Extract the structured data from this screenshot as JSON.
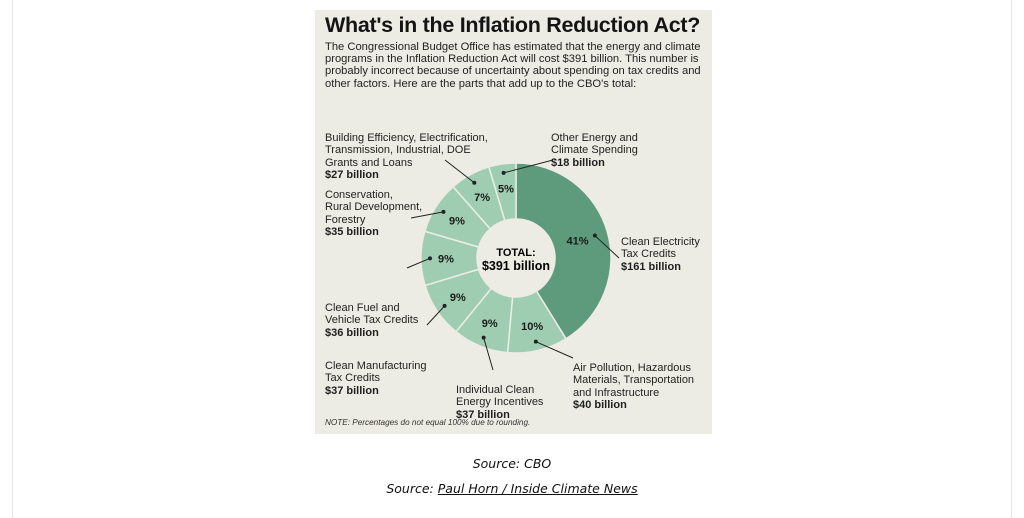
{
  "chart_data": {
    "type": "pie",
    "title": "What's in the Inflation Reduction Act?",
    "subtitle": "The Congressional Budget Office has estimated that the energy and climate programs in the Inflation Reduction Act will cost $391 billion. This number is probably incorrect because of uncertainty about spending on tax credits and other factors. Here are the parts that add up to the CBO's total:",
    "center_label": {
      "line1": "TOTAL:",
      "line2": "$391 billion"
    },
    "note": "NOTE: Percentages do not equal 100% due to rounding.",
    "slices": [
      {
        "name": "Clean Electricity\nTax Credits",
        "amount": "$161 billion",
        "value": 161,
        "percent": "41%",
        "color": "#5e9a7c"
      },
      {
        "name": "Air Pollution, Hazardous\nMaterials, Transportation\nand Infrastructure",
        "amount": "$40 billion",
        "value": 40,
        "percent": "10%",
        "color": "#9fcdb2"
      },
      {
        "name": "Individual Clean\nEnergy Incentives",
        "amount": "$37 billion",
        "value": 37,
        "percent": "9%",
        "color": "#9fcdb2"
      },
      {
        "name": "Clean Manufacturing\nTax Credits",
        "amount": "$37 billion",
        "value": 37,
        "percent": "9%",
        "color": "#9fcdb2"
      },
      {
        "name": "Clean Fuel and\nVehicle Tax Credits",
        "amount": "$36 billion",
        "value": 36,
        "percent": "9%",
        "color": "#9fcdb2"
      },
      {
        "name": "Conservation,\nRural Development,\nForestry",
        "amount": "$35 billion",
        "value": 35,
        "percent": "9%",
        "color": "#9fcdb2"
      },
      {
        "name": "Building Efficiency, Electrification,\nTransmission, Industrial, DOE\nGrants and Loans",
        "amount": "$27 billion",
        "value": 27,
        "percent": "7%",
        "color": "#9fcdb2"
      },
      {
        "name": "Other Energy and\nClimate Spending",
        "amount": "$18 billion",
        "value": 18,
        "percent": "5%",
        "color": "#9fcdb2"
      }
    ]
  },
  "captions": {
    "source1": "Source: CBO",
    "source2_prefix": "Source: ",
    "source2_link": "Paul Horn / Inside Climate News"
  }
}
